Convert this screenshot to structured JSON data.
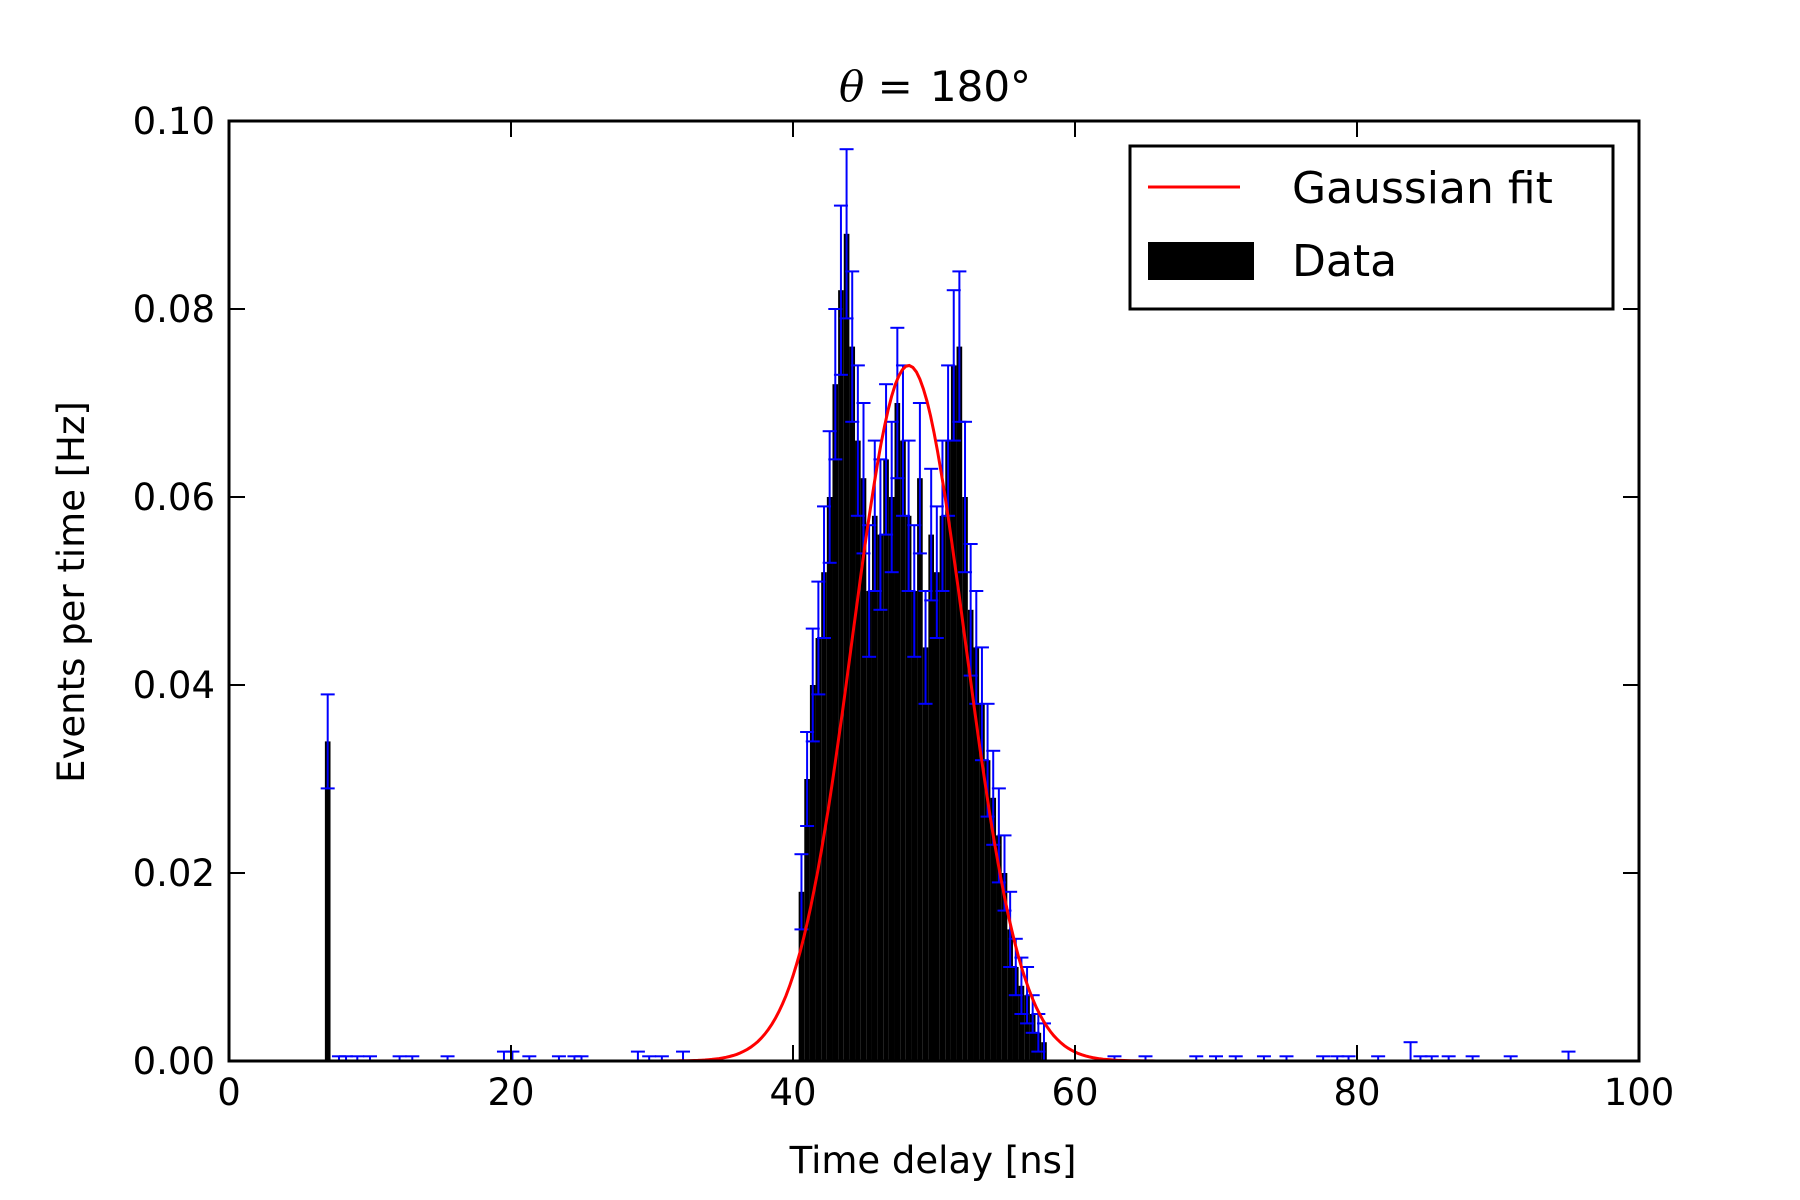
{
  "chart_data": {
    "type": "bar",
    "title_prefix": "θ =",
    "title_value": "180°",
    "xlabel": "Time delay [ns]",
    "ylabel": "Events per time [Hz]",
    "xlim": [
      0,
      100
    ],
    "ylim": [
      0,
      0.1
    ],
    "x_ticks": [
      "0",
      "20",
      "40",
      "60",
      "80",
      "100"
    ],
    "y_ticks": [
      "0.00",
      "0.02",
      "0.04",
      "0.06",
      "0.08",
      "0.10"
    ],
    "grid": false,
    "legend_position": "top-right",
    "colors": {
      "data_bars": "#000000",
      "error_bars": "#0000ff",
      "fit_line": "#ff0000"
    },
    "series": [
      {
        "name": "Data",
        "kind": "histogram",
        "bin_centers_ns": [
          7.0,
          40.6,
          41.0,
          41.4,
          41.8,
          42.2,
          42.6,
          43.0,
          43.4,
          43.8,
          44.2,
          44.6,
          45.0,
          45.4,
          45.8,
          46.2,
          46.6,
          47.0,
          47.4,
          47.8,
          48.2,
          48.6,
          49.0,
          49.4,
          49.8,
          50.2,
          50.6,
          51.0,
          51.4,
          51.8,
          52.2,
          52.6,
          53.0,
          53.4,
          53.8,
          54.2,
          54.6,
          55.0,
          55.4,
          55.8,
          56.2,
          56.6,
          57.0,
          57.4,
          57.8
        ],
        "values_hz": [
          0.034,
          0.018,
          0.03,
          0.04,
          0.045,
          0.052,
          0.06,
          0.072,
          0.082,
          0.088,
          0.076,
          0.066,
          0.062,
          0.05,
          0.058,
          0.056,
          0.064,
          0.06,
          0.07,
          0.066,
          0.058,
          0.05,
          0.062,
          0.044,
          0.056,
          0.052,
          0.058,
          0.066,
          0.074,
          0.076,
          0.06,
          0.048,
          0.044,
          0.038,
          0.032,
          0.028,
          0.024,
          0.02,
          0.014,
          0.01,
          0.008,
          0.007,
          0.005,
          0.003,
          0.002
        ],
        "errors_hz": [
          0.005,
          0.004,
          0.005,
          0.006,
          0.006,
          0.007,
          0.007,
          0.008,
          0.009,
          0.009,
          0.008,
          0.008,
          0.008,
          0.007,
          0.008,
          0.008,
          0.008,
          0.008,
          0.008,
          0.008,
          0.008,
          0.007,
          0.008,
          0.006,
          0.007,
          0.007,
          0.008,
          0.008,
          0.008,
          0.008,
          0.008,
          0.007,
          0.006,
          0.006,
          0.006,
          0.005,
          0.005,
          0.004,
          0.004,
          0.003,
          0.003,
          0.003,
          0.002,
          0.002,
          0.002
        ]
      },
      {
        "name": "Gaussian fit",
        "kind": "line",
        "amplitude_hz": 0.074,
        "mean_ns": 48.2,
        "sigma_ns": 4.0
      }
    ],
    "background_points": {
      "x_ns": [
        7.8,
        8.3,
        9.1,
        10.0,
        12.1,
        13.0,
        15.5,
        19.5,
        20.1,
        21.3,
        23.4,
        24.5,
        25.0,
        29.0,
        29.8,
        30.7,
        32.2,
        62.8,
        65.0,
        68.6,
        70.0,
        71.4,
        73.4,
        75.0,
        77.6,
        78.6,
        79.4,
        81.5,
        83.8,
        84.5,
        85.3,
        86.5,
        88.2,
        90.9,
        95.0
      ],
      "values_hz": [
        0.0005,
        0.0005,
        0.0005,
        0.0005,
        0.0005,
        0.0005,
        0.0005,
        0.001,
        0.001,
        0.0005,
        0.0005,
        0.0005,
        0.0005,
        0.001,
        0.0005,
        0.0005,
        0.001,
        0.0005,
        0.0005,
        0.0005,
        0.0005,
        0.0005,
        0.0005,
        0.0005,
        0.0005,
        0.0005,
        0.0005,
        0.0005,
        0.002,
        0.0005,
        0.0005,
        0.0005,
        0.0005,
        0.0005,
        0.001
      ]
    }
  }
}
